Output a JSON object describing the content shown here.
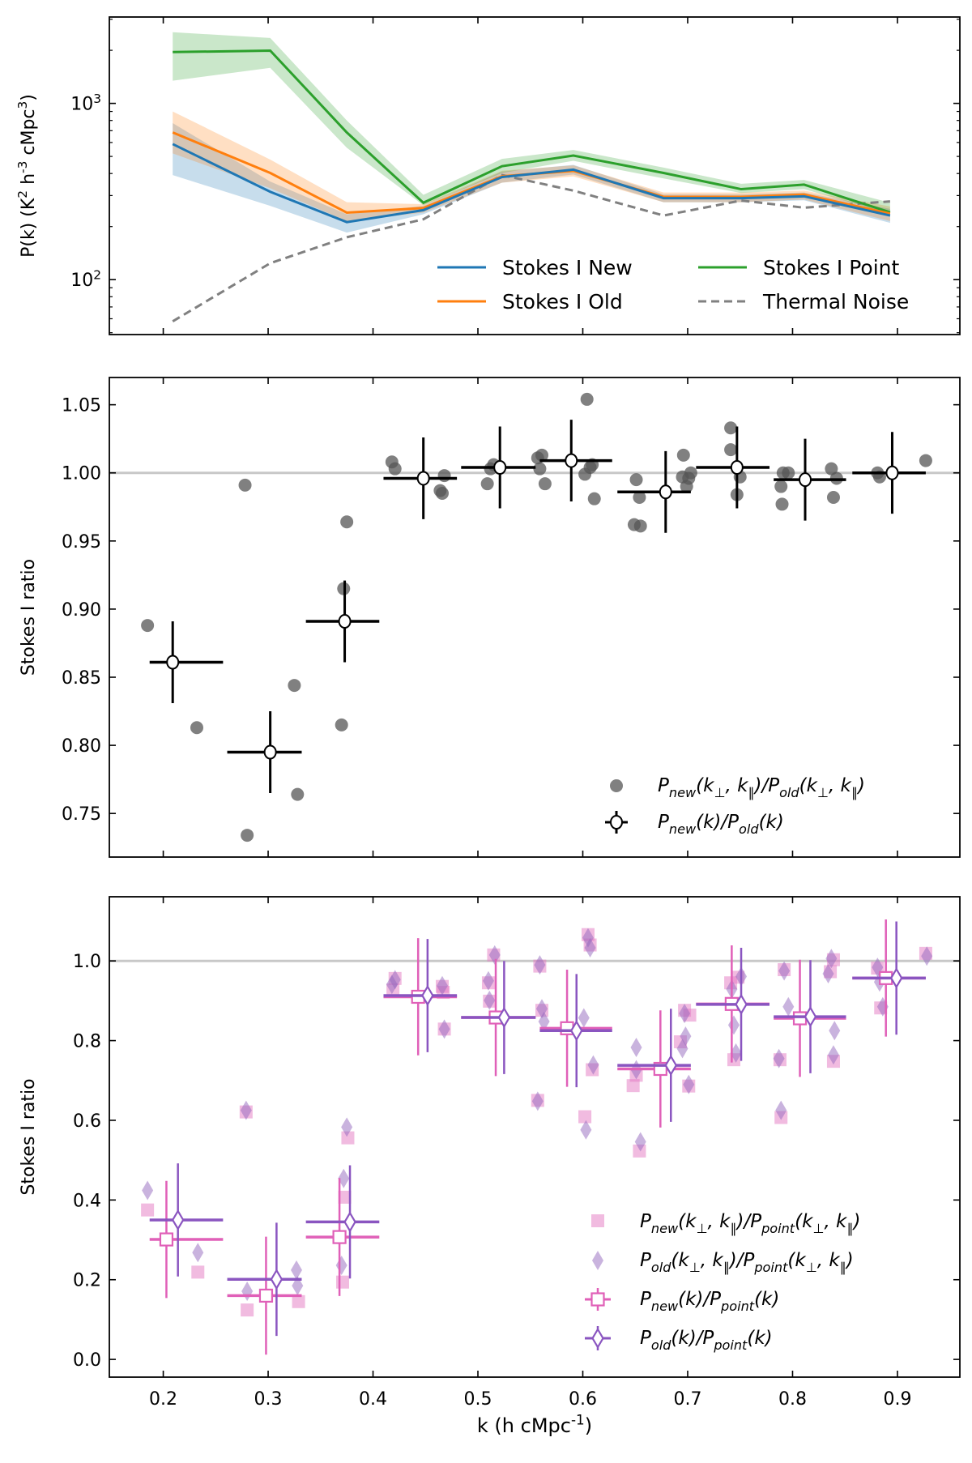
{
  "chart_data": [
    {
      "type": "line",
      "panel": "top",
      "title": "",
      "ylabel": "P(k) (K^{2} h^{-3} cMpc^{3})",
      "xlabel": "",
      "yscale": "log",
      "ylim": [
        48.8,
        3090
      ],
      "xlim": [
        0.1486,
        0.9595
      ],
      "yticks": [
        {
          "value": 100,
          "label": "10^{2}"
        },
        {
          "value": 1000,
          "label": "10^{3}"
        }
      ],
      "legend_placement": "lower-right",
      "x": [
        0.209,
        0.302,
        0.375,
        0.448,
        0.523,
        0.591,
        0.677,
        0.751,
        0.811,
        0.893
      ],
      "series": [
        {
          "name": "Stokes I New",
          "color": "#1f77b4",
          "style": "solid",
          "values": [
            588,
            315,
            212,
            248,
            382,
            421,
            290,
            290,
            297,
            231
          ],
          "lo": [
            392,
            262,
            185,
            235,
            355,
            395,
            275,
            275,
            282,
            210
          ],
          "hi": [
            773,
            360,
            235,
            262,
            410,
            448,
            305,
            305,
            312,
            252
          ]
        },
        {
          "name": "Stokes I Old",
          "color": "#ff7f0e",
          "style": "solid",
          "values": [
            684,
            403,
            240,
            255,
            386,
            414,
            295,
            295,
            304,
            237
          ],
          "lo": [
            520,
            330,
            215,
            240,
            355,
            385,
            275,
            275,
            285,
            215
          ],
          "hi": [
            900,
            480,
            275,
            268,
            415,
            445,
            312,
            312,
            320,
            260
          ]
        },
        {
          "name": "Stokes I Point",
          "color": "#2ca02c",
          "style": "solid",
          "values": [
            1954,
            1992,
            684,
            273,
            440,
            506,
            403,
            326,
            346,
            241
          ],
          "lo": [
            1345,
            1590,
            560,
            264,
            403,
            472,
            375,
            310,
            326,
            237
          ],
          "hi": [
            2535,
            2350,
            800,
            303,
            484,
            544,
            432,
            350,
            368,
            273
          ]
        },
        {
          "name": "Thermal Noise",
          "color": "#808080",
          "style": "dashed",
          "values": [
            58,
            124,
            174,
            220,
            392,
            320,
            231,
            281,
            256,
            278
          ]
        }
      ]
    },
    {
      "type": "scatter",
      "panel": "middle",
      "ylabel": "Stokes I ratio",
      "xlabel": "",
      "ylim": [
        0.718,
        1.07
      ],
      "xlim": [
        0.1486,
        0.9595
      ],
      "yticks": [
        0.75,
        0.8,
        0.85,
        0.9,
        0.95,
        1.0,
        1.05
      ],
      "ytick_labels": [
        "0.75",
        "0.80",
        "0.85",
        "0.90",
        "0.95",
        "1.00",
        "1.05"
      ],
      "reference_line": 1.0,
      "legend_placement": "lower-right",
      "scatter": {
        "name": "P_{new}(k_{⊥}, k_{∥})/P_{old}(k_{⊥}, k_{∥})",
        "color": "#555555",
        "points": [
          [
            0.185,
            0.888
          ],
          [
            0.232,
            0.813
          ],
          [
            0.278,
            0.991
          ],
          [
            0.28,
            0.734
          ],
          [
            0.325,
            0.844
          ],
          [
            0.328,
            0.764
          ],
          [
            0.37,
            0.815
          ],
          [
            0.372,
            0.915
          ],
          [
            0.375,
            0.964
          ],
          [
            0.418,
            1.008
          ],
          [
            0.421,
            1.003
          ],
          [
            0.464,
            0.987
          ],
          [
            0.466,
            0.985
          ],
          [
            0.468,
            0.998
          ],
          [
            0.509,
            0.992
          ],
          [
            0.512,
            1.003
          ],
          [
            0.515,
            1.006
          ],
          [
            0.557,
            1.011
          ],
          [
            0.559,
            1.003
          ],
          [
            0.561,
            1.013
          ],
          [
            0.564,
            0.992
          ],
          [
            0.602,
            0.999
          ],
          [
            0.604,
            1.054
          ],
          [
            0.607,
            1.004
          ],
          [
            0.609,
            1.006
          ],
          [
            0.611,
            0.981
          ],
          [
            0.651,
            0.995
          ],
          [
            0.654,
            0.982
          ],
          [
            0.649,
            0.962
          ],
          [
            0.655,
            0.961
          ],
          [
            0.696,
            1.013
          ],
          [
            0.695,
            0.997
          ],
          [
            0.699,
            0.99
          ],
          [
            0.701,
            0.996
          ],
          [
            0.703,
            1.0
          ],
          [
            0.741,
            1.033
          ],
          [
            0.741,
            1.017
          ],
          [
            0.747,
            0.984
          ],
          [
            0.75,
            0.997
          ],
          [
            0.789,
            0.99
          ],
          [
            0.79,
            0.977
          ],
          [
            0.791,
            1.0
          ],
          [
            0.796,
            1.0
          ],
          [
            0.837,
            1.003
          ],
          [
            0.839,
            0.982
          ],
          [
            0.842,
            0.996
          ],
          [
            0.881,
            1.0
          ],
          [
            0.883,
            0.997
          ],
          [
            0.927,
            1.009
          ]
        ]
      },
      "binned": {
        "name": "P_{new}(k)/P_{old}(k)",
        "color": "#000000",
        "points": [
          {
            "k": 0.209,
            "y": 0.861,
            "yerr": 0.03,
            "klo": 0.187,
            "khi": 0.257
          },
          {
            "k": 0.302,
            "y": 0.795,
            "yerr": 0.03,
            "klo": 0.261,
            "khi": 0.332
          },
          {
            "k": 0.373,
            "y": 0.891,
            "yerr": 0.03,
            "klo": 0.336,
            "khi": 0.406
          },
          {
            "k": 0.448,
            "y": 0.996,
            "yerr": 0.03,
            "klo": 0.41,
            "khi": 0.48
          },
          {
            "k": 0.521,
            "y": 1.004,
            "yerr": 0.03,
            "klo": 0.484,
            "khi": 0.555
          },
          {
            "k": 0.589,
            "y": 1.009,
            "yerr": 0.03,
            "klo": 0.559,
            "khi": 0.628
          },
          {
            "k": 0.679,
            "y": 0.986,
            "yerr": 0.03,
            "klo": 0.633,
            "khi": 0.703
          },
          {
            "k": 0.747,
            "y": 1.004,
            "yerr": 0.03,
            "klo": 0.708,
            "khi": 0.778
          },
          {
            "k": 0.812,
            "y": 0.995,
            "yerr": 0.03,
            "klo": 0.782,
            "khi": 0.851
          },
          {
            "k": 0.895,
            "y": 1.0,
            "yerr": 0.03,
            "klo": 0.857,
            "khi": 0.927
          }
        ]
      }
    },
    {
      "type": "scatter",
      "panel": "bottom",
      "ylabel": "Stokes I ratio",
      "xlabel": "k (h cMpc^{-1})",
      "ylim": [
        -0.0445,
        1.161
      ],
      "xlim": [
        0.1486,
        0.9595
      ],
      "xticks": [
        0.2,
        0.3,
        0.4,
        0.5,
        0.6,
        0.7,
        0.8,
        0.9
      ],
      "xtick_labels": [
        "0.2",
        "0.3",
        "0.4",
        "0.5",
        "0.6",
        "0.7",
        "0.8",
        "0.9"
      ],
      "yticks": [
        0.0,
        0.2,
        0.4,
        0.6,
        0.8,
        1.0
      ],
      "ytick_labels": [
        "0.0",
        "0.2",
        "0.4",
        "0.6",
        "0.8",
        "1.0"
      ],
      "reference_line": 1.0,
      "legend_placement": "lower-right",
      "scatter": [
        {
          "name": "P_{new}(k_{⊥}, k_{∥})/P_{point}(k_{⊥}, k_{∥})",
          "marker": "square",
          "color": "#e377c2",
          "points": [
            [
              0.185,
              0.375
            ],
            [
              0.233,
              0.219
            ],
            [
              0.279,
              0.621
            ],
            [
              0.28,
              0.124
            ],
            [
              0.329,
              0.145
            ],
            [
              0.371,
              0.194
            ],
            [
              0.373,
              0.407
            ],
            [
              0.376,
              0.556
            ],
            [
              0.421,
              0.956
            ],
            [
              0.419,
              0.927
            ],
            [
              0.468,
              0.829
            ],
            [
              0.467,
              0.921
            ],
            [
              0.466,
              0.936
            ],
            [
              0.51,
              0.945
            ],
            [
              0.511,
              0.899
            ],
            [
              0.515,
              1.015
            ],
            [
              0.557,
              0.65
            ],
            [
              0.559,
              0.987
            ],
            [
              0.561,
              0.876
            ],
            [
              0.602,
              0.609
            ],
            [
              0.605,
              1.066
            ],
            [
              0.607,
              1.04
            ],
            [
              0.609,
              0.727
            ],
            [
              0.648,
              0.687
            ],
            [
              0.651,
              0.713
            ],
            [
              0.654,
              0.523
            ],
            [
              0.693,
              0.797
            ],
            [
              0.697,
              0.876
            ],
            [
              0.701,
              0.686
            ],
            [
              0.702,
              0.864
            ],
            [
              0.741,
              0.945
            ],
            [
              0.744,
              0.752
            ],
            [
              0.748,
              0.959
            ],
            [
              0.788,
              0.752
            ],
            [
              0.789,
              0.607
            ],
            [
              0.792,
              0.978
            ],
            [
              0.836,
              0.973
            ],
            [
              0.839,
              0.748
            ],
            [
              0.839,
              1.003
            ],
            [
              0.881,
              0.982
            ],
            [
              0.884,
              0.882
            ],
            [
              0.927,
              1.019
            ]
          ]
        },
        {
          "name": "P_{old}(k_{⊥}, k_{∥})/P_{point}(k_{⊥}, k_{∥})",
          "marker": "diamond",
          "color": "#9467bd",
          "points": [
            [
              0.185,
              0.424
            ],
            [
              0.233,
              0.268
            ],
            [
              0.279,
              0.625
            ],
            [
              0.28,
              0.171
            ],
            [
              0.327,
              0.224
            ],
            [
              0.328,
              0.185
            ],
            [
              0.37,
              0.236
            ],
            [
              0.372,
              0.454
            ],
            [
              0.375,
              0.583
            ],
            [
              0.418,
              0.941
            ],
            [
              0.421,
              0.953
            ],
            [
              0.468,
              0.829
            ],
            [
              0.466,
              0.938
            ],
            [
              0.51,
              0.95
            ],
            [
              0.511,
              0.901
            ],
            [
              0.516,
              1.015
            ],
            [
              0.557,
              0.648
            ],
            [
              0.559,
              0.99
            ],
            [
              0.561,
              0.88
            ],
            [
              0.563,
              0.848
            ],
            [
              0.601,
              0.857
            ],
            [
              0.603,
              0.576
            ],
            [
              0.605,
              1.058
            ],
            [
              0.607,
              1.033
            ],
            [
              0.61,
              0.739
            ],
            [
              0.651,
              0.783
            ],
            [
              0.651,
              0.727
            ],
            [
              0.655,
              0.546
            ],
            [
              0.695,
              0.78
            ],
            [
              0.698,
              0.811
            ],
            [
              0.697,
              0.868
            ],
            [
              0.701,
              0.69
            ],
            [
              0.742,
              0.929
            ],
            [
              0.744,
              0.839
            ],
            [
              0.746,
              0.769
            ],
            [
              0.751,
              0.961
            ],
            [
              0.787,
              0.755
            ],
            [
              0.789,
              0.625
            ],
            [
              0.792,
              0.975
            ],
            [
              0.796,
              0.885
            ],
            [
              0.837,
              1.006
            ],
            [
              0.834,
              0.968
            ],
            [
              0.84,
              0.825
            ],
            [
              0.839,
              0.764
            ],
            [
              0.881,
              0.984
            ],
            [
              0.883,
              0.947
            ],
            [
              0.886,
              0.885
            ],
            [
              0.928,
              1.012
            ]
          ]
        }
      ],
      "binned": [
        {
          "name": "P_{new}(k)/P_{point}(k)",
          "marker": "square",
          "color": "#e060b8",
          "points": [
            {
              "k": 0.203,
              "y": 0.301,
              "yerr": 0.147,
              "klo": 0.187,
              "khi": 0.257
            },
            {
              "k": 0.298,
              "y": 0.16,
              "yerr": 0.148,
              "klo": 0.261,
              "khi": 0.332
            },
            {
              "k": 0.368,
              "y": 0.307,
              "yerr": 0.148,
              "klo": 0.336,
              "khi": 0.406
            },
            {
              "k": 0.443,
              "y": 0.91,
              "yerr": 0.147,
              "klo": 0.41,
              "khi": 0.48
            },
            {
              "k": 0.517,
              "y": 0.858,
              "yerr": 0.147,
              "klo": 0.484,
              "khi": 0.555
            },
            {
              "k": 0.585,
              "y": 0.831,
              "yerr": 0.147,
              "klo": 0.559,
              "khi": 0.628
            },
            {
              "k": 0.674,
              "y": 0.729,
              "yerr": 0.147,
              "klo": 0.633,
              "khi": 0.703
            },
            {
              "k": 0.742,
              "y": 0.892,
              "yerr": 0.147,
              "klo": 0.708,
              "khi": 0.778
            },
            {
              "k": 0.807,
              "y": 0.856,
              "yerr": 0.147,
              "klo": 0.782,
              "khi": 0.851
            },
            {
              "k": 0.889,
              "y": 0.957,
              "yerr": 0.147,
              "klo": 0.857,
              "khi": 0.927
            }
          ]
        },
        {
          "name": "P_{old}(k)/P_{point}(k)",
          "marker": "diamond",
          "color": "#8a55c0",
          "points": [
            {
              "k": 0.214,
              "y": 0.35,
              "yerr": 0.142,
              "klo": 0.187,
              "khi": 0.257
            },
            {
              "k": 0.308,
              "y": 0.201,
              "yerr": 0.142,
              "klo": 0.261,
              "khi": 0.332
            },
            {
              "k": 0.378,
              "y": 0.345,
              "yerr": 0.142,
              "klo": 0.336,
              "khi": 0.406
            },
            {
              "k": 0.452,
              "y": 0.913,
              "yerr": 0.142,
              "klo": 0.41,
              "khi": 0.48
            },
            {
              "k": 0.525,
              "y": 0.858,
              "yerr": 0.142,
              "klo": 0.484,
              "khi": 0.555
            },
            {
              "k": 0.594,
              "y": 0.825,
              "yerr": 0.142,
              "klo": 0.559,
              "khi": 0.628
            },
            {
              "k": 0.684,
              "y": 0.738,
              "yerr": 0.142,
              "klo": 0.633,
              "khi": 0.703
            },
            {
              "k": 0.751,
              "y": 0.891,
              "yerr": 0.142,
              "klo": 0.708,
              "khi": 0.778
            },
            {
              "k": 0.817,
              "y": 0.86,
              "yerr": 0.142,
              "klo": 0.782,
              "khi": 0.851
            },
            {
              "k": 0.899,
              "y": 0.957,
              "yerr": 0.142,
              "klo": 0.857,
              "khi": 0.927
            }
          ]
        }
      ]
    }
  ]
}
